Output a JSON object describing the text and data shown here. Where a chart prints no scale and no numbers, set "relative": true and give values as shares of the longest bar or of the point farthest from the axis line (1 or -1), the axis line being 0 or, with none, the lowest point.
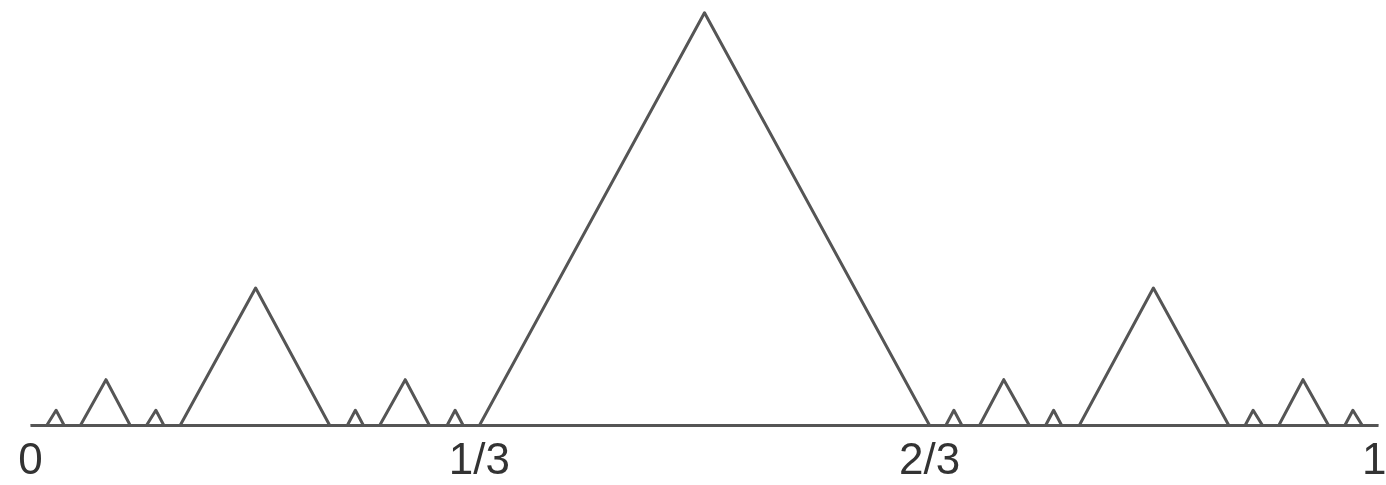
{
  "chart_data": {
    "type": "line",
    "relative": true,
    "xlim": [
      0,
      1
    ],
    "xticks": [
      0,
      {
        "value": 0.333,
        "label": "1/3"
      },
      {
        "value": 0.667,
        "label": "2/3"
      },
      1
    ],
    "x": [
      0,
      0.012,
      0.019,
      0.025,
      0.037,
      0.056,
      0.074,
      0.086,
      0.093,
      0.099,
      0.111,
      0.167,
      0.222,
      0.235,
      0.241,
      0.247,
      0.259,
      0.278,
      0.296,
      0.309,
      0.315,
      0.321,
      0.333,
      0.5,
      0.667,
      0.679,
      0.685,
      0.691,
      0.704,
      0.722,
      0.741,
      0.753,
      0.759,
      0.765,
      0.778,
      0.833,
      0.889,
      0.901,
      0.907,
      0.914,
      0.926,
      0.944,
      0.963,
      0.975,
      0.981,
      0.988,
      1
    ],
    "series": [
      {
        "color": "#555555",
        "values": [
          0,
          0,
          0.037,
          0,
          0,
          0.111,
          0,
          0,
          0.037,
          0,
          0,
          0.333,
          0,
          0,
          0.037,
          0,
          0,
          0.111,
          0,
          0,
          0.037,
          0,
          0,
          1,
          0,
          0,
          0.037,
          0,
          0,
          0.111,
          0,
          0,
          0.037,
          0,
          0,
          0.333,
          0,
          0,
          0.037,
          0,
          0,
          0.111,
          0,
          0,
          0.037,
          0,
          0
        ]
      }
    ],
    "grid": false
  }
}
